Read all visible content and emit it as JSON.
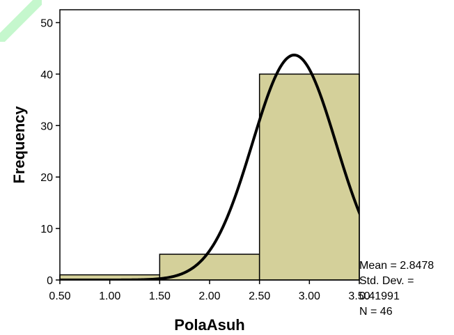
{
  "chart_data": {
    "type": "bar",
    "subtype": "histogram",
    "xlabel": "PolaAsuh",
    "ylabel": "Frequency",
    "xlim": [
      0.5,
      3.5
    ],
    "ylim": [
      0,
      52.5
    ],
    "x_ticks": [
      "0.50",
      "1.00",
      "1.50",
      "2.00",
      "2.50",
      "3.00",
      "3.50"
    ],
    "x_tick_values": [
      0.5,
      1.0,
      1.5,
      2.0,
      2.5,
      3.0,
      3.5
    ],
    "y_ticks": [
      "0",
      "10",
      "20",
      "30",
      "40",
      "50"
    ],
    "y_tick_values": [
      0,
      10,
      20,
      30,
      40,
      50
    ],
    "bins": [
      {
        "start": 0.5,
        "end": 1.5,
        "value": 1
      },
      {
        "start": 1.5,
        "end": 2.5,
        "value": 5
      },
      {
        "start": 2.5,
        "end": 3.5,
        "value": 40
      }
    ],
    "normal_curve": {
      "mean": 2.8478,
      "sd": 0.41991,
      "n": 46,
      "bin_width": 1.0
    },
    "bar_color": "#d4d09a",
    "curve_color": "#000000",
    "grid": false,
    "legend": "none",
    "stats": {
      "mean_line": "Mean = 2.8478",
      "sd_line_1": "Std. Dev. =",
      "sd_line_2": "0.41991",
      "n_line": "N = 46"
    }
  },
  "watermark_color": "#59e870"
}
